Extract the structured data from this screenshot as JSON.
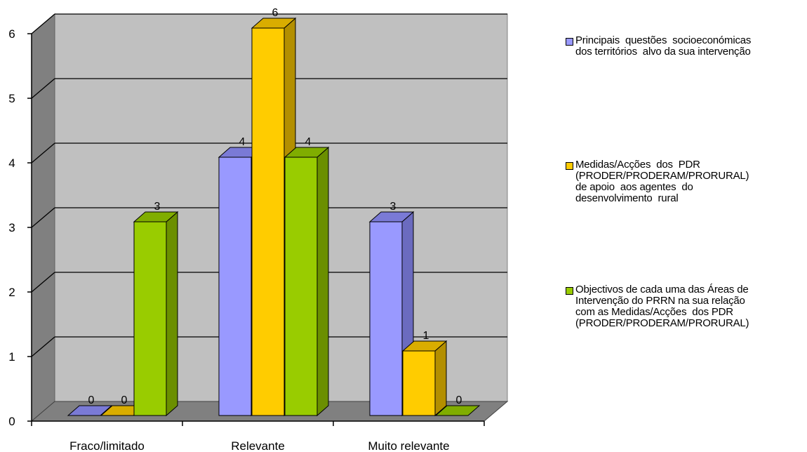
{
  "chart_data": {
    "type": "bar",
    "categories": [
      "Fraco/limitado",
      "Relevante",
      "Muito relevante"
    ],
    "series": [
      {
        "name": "Principais questões socioeconómicas dos territórios alvo da sua intervenção",
        "values": [
          0,
          4,
          3
        ],
        "color": "#9999ff",
        "side_color": "#6b6bbf",
        "top_color": "#7a7ad6"
      },
      {
        "name": "Medidas/Acções dos PDR (PRODER/PRODERAM/PRORURAL) de apoio aos agentes do desenvolvimento rural",
        "values": [
          0,
          6,
          1
        ],
        "color": "#ffcc00",
        "side_color": "#b38f00",
        "top_color": "#d9ad00"
      },
      {
        "name": "Objectivos de cada uma das Áreas de Intervenção do PRRN na sua relação com as Medidas/Acções dos PDR (PRODER/PRODERAM/PRORURAL)",
        "values": [
          3,
          4,
          0
        ],
        "color": "#99cc00",
        "side_color": "#6b8f00",
        "top_color": "#80ad00"
      }
    ],
    "y_ticks": [
      "0",
      "1",
      "2",
      "3",
      "4",
      "5",
      "6"
    ],
    "ylim": [
      0,
      6
    ],
    "grid": true,
    "legend_position": "right",
    "title": "",
    "xlabel": "",
    "ylabel": ""
  },
  "legend": {
    "items": [
      {
        "lines": [
          "Principais  questões  socioeconómicas",
          "dos territórios  alvo da sua intervenção"
        ]
      },
      {
        "lines": [
          "Medidas/Acções  dos  PDR",
          "(PRODER/PRODERAM/PRORURAL)",
          "de apoio  aos agentes  do",
          "desenvolvimento  rural"
        ]
      },
      {
        "lines": [
          "Objectivos de cada uma das Áreas de",
          "Intervenção do PRRN na sua relação",
          "com as Medidas/Acções  dos PDR",
          "(PRODER/PRODERAM/PRORURAL)"
        ]
      }
    ]
  }
}
